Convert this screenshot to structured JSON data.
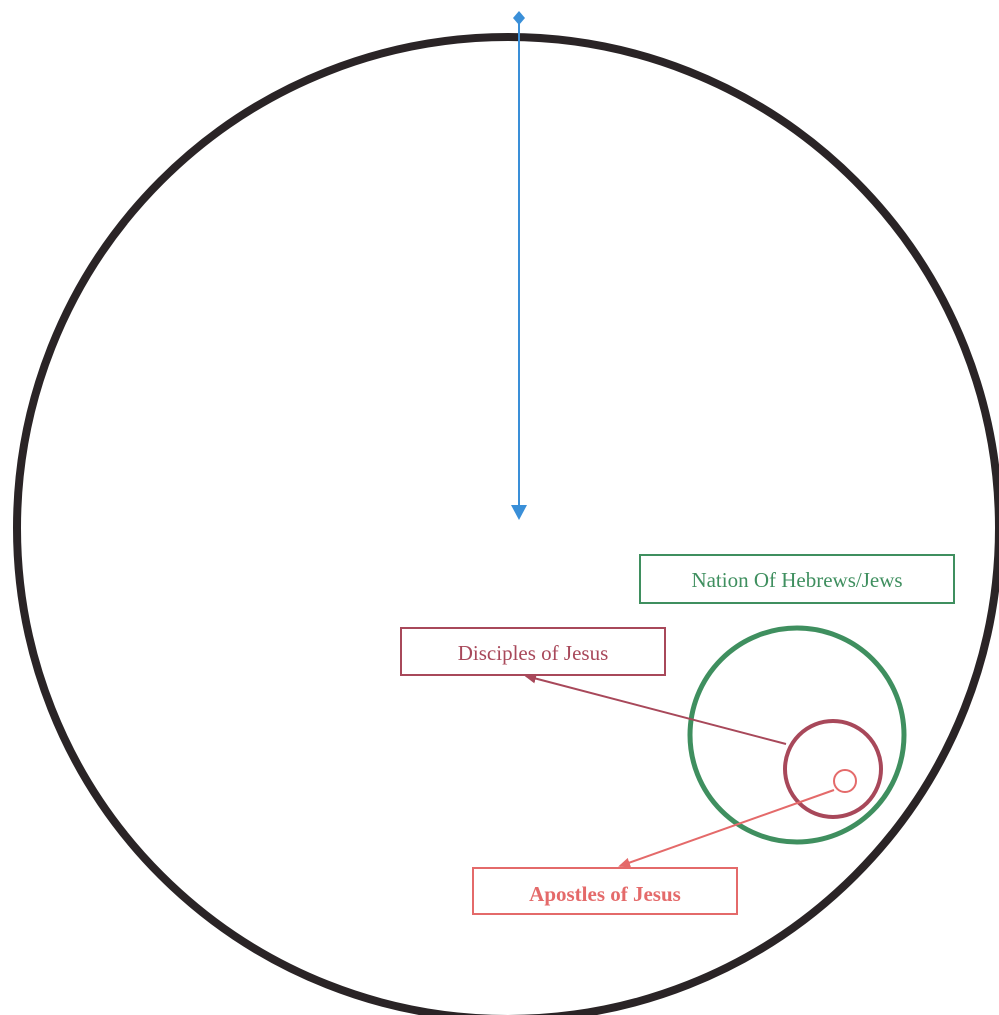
{
  "labels": {
    "nation": "Nation Of Hebrews/Jews",
    "disciples": "Disciples of Jesus",
    "apostles": "Apostles of Jesus"
  },
  "colors": {
    "outer_circle": "#2a2426",
    "pointer_line": "#3a8fd8",
    "nation": "#3f8f5f",
    "disciples": "#a8485a",
    "apostles": "#e46a6a",
    "background": "#ffffff"
  },
  "icons": {
    "pointer_start": "diamond-icon",
    "pointer_end": "arrowhead-icon"
  }
}
